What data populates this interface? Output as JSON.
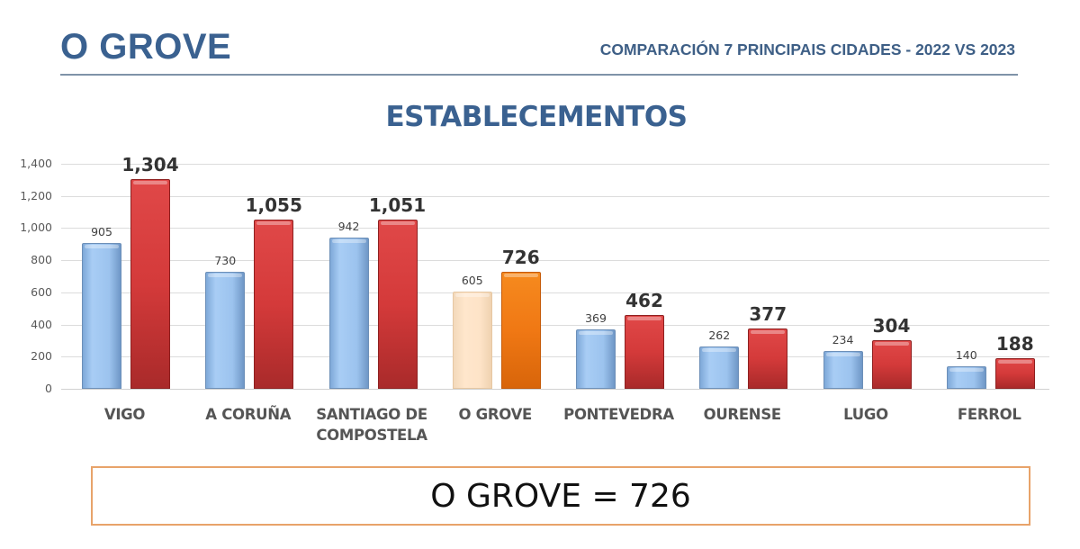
{
  "header": {
    "title": "O GROVE",
    "subtitle": "COMPARACIÓN 7 PRINCIPAIS CIDADES - 2022 VS 2023"
  },
  "chart_title": "ESTABLECEMENTOS",
  "summary": {
    "text": "O GROVE = 726"
  },
  "colors": {
    "title": "#3a6190",
    "series_2022": "#9cc3ee",
    "series_2023": "#d43a3a",
    "highlight_2022": "#fde3c7",
    "highlight_2023": "#f07814",
    "summary_border": "#e8a36a"
  },
  "y_ticks": [
    "1,400",
    "1,200",
    "1,000",
    "800",
    "600",
    "400",
    "200",
    "0"
  ],
  "chart_data": {
    "type": "bar",
    "title": "ESTABLECEMENTOS",
    "xlabel": "",
    "ylabel": "",
    "ylim": [
      0,
      1400
    ],
    "yticks": [
      0,
      200,
      400,
      600,
      800,
      1000,
      1200,
      1400
    ],
    "grid": true,
    "legend": null,
    "categories": [
      "VIGO",
      "A CORUÑA",
      "SANTIAGO DE COMPOSTELA",
      "O GROVE",
      "PONTEVEDRA",
      "OURENSE",
      "LUGO",
      "FERROL"
    ],
    "series": [
      {
        "name": "2022",
        "values": [
          905,
          730,
          942,
          605,
          369,
          262,
          234,
          140
        ]
      },
      {
        "name": "2023",
        "values": [
          1304,
          1055,
          1051,
          726,
          462,
          377,
          304,
          188
        ]
      }
    ],
    "highlighted_category": "O GROVE"
  },
  "groups": [
    {
      "label": "VIGO",
      "label_line2": "",
      "v22": 905,
      "v23": 1304,
      "t22": "905",
      "t23": "1,304",
      "highlight": false
    },
    {
      "label": "A CORUÑA",
      "label_line2": "",
      "v22": 730,
      "v23": 1055,
      "t22": "730",
      "t23": "1,055",
      "highlight": false
    },
    {
      "label": "SANTIAGO DE",
      "label_line2": "COMPOSTELA",
      "v22": 942,
      "v23": 1051,
      "t22": "942",
      "t23": "1,051",
      "highlight": false
    },
    {
      "label": "O GROVE",
      "label_line2": "",
      "v22": 605,
      "v23": 726,
      "t22": "605",
      "t23": "726",
      "highlight": true
    },
    {
      "label": "PONTEVEDRA",
      "label_line2": "",
      "v22": 369,
      "v23": 462,
      "t22": "369",
      "t23": "462",
      "highlight": false
    },
    {
      "label": "OURENSE",
      "label_line2": "",
      "v22": 262,
      "v23": 377,
      "t22": "262",
      "t23": "377",
      "highlight": false
    },
    {
      "label": "LUGO",
      "label_line2": "",
      "v22": 234,
      "v23": 304,
      "t22": "234",
      "t23": "304",
      "highlight": false
    },
    {
      "label": "FERROL",
      "label_line2": "",
      "v22": 140,
      "v23": 188,
      "t22": "140",
      "t23": "188",
      "highlight": false
    }
  ]
}
